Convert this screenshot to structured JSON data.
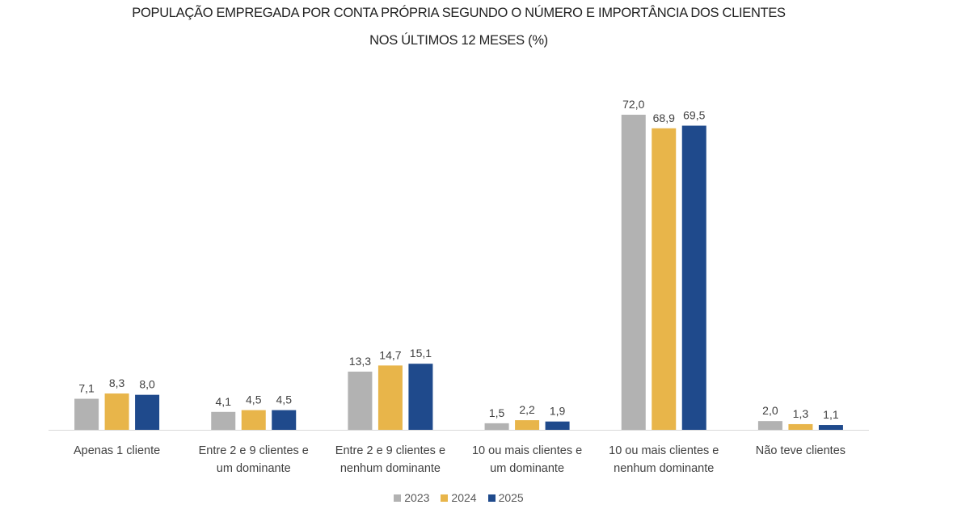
{
  "chart_data": {
    "type": "bar",
    "title": [
      "POPULAÇÃO EMPREGADA POR CONTA PRÓPRIA SEGUNDO O NÚMERO E IMPORTÂNCIA DOS CLIENTES",
      "NOS ÚLTIMOS 12 MESES (%)"
    ],
    "categories": [
      [
        "Apenas 1 cliente"
      ],
      [
        "Entre 2 e 9 clientes e",
        "um dominante"
      ],
      [
        "Entre 2 e 9 clientes e",
        "nenhum dominante"
      ],
      [
        "10 ou mais clientes e",
        "um dominante"
      ],
      [
        "10 ou mais clientes e",
        "nenhum dominante"
      ],
      [
        "Não teve clientes"
      ]
    ],
    "series": [
      {
        "name": "2023",
        "color": "#b2b2b2",
        "values": [
          7.1,
          4.1,
          13.3,
          1.5,
          72.0,
          2.0
        ],
        "labels": [
          "7,1",
          "4,1",
          "13,3",
          "1,5",
          "72,0",
          "2,0"
        ]
      },
      {
        "name": "2024",
        "color": "#e8b54a",
        "values": [
          8.3,
          4.5,
          14.7,
          2.2,
          68.9,
          1.3
        ],
        "labels": [
          "8,3",
          "4,5",
          "14,7",
          "2,2",
          "68,9",
          "1,3"
        ]
      },
      {
        "name": "2025",
        "color": "#1f4a8c",
        "values": [
          8.0,
          4.5,
          15.1,
          1.9,
          69.5,
          1.1
        ],
        "labels": [
          "8,0",
          "4,5",
          "15,1",
          "1,9",
          "69,5",
          "1,1"
        ]
      }
    ],
    "ylim": [
      0,
      72
    ],
    "grid": false,
    "legend": "bottom"
  }
}
